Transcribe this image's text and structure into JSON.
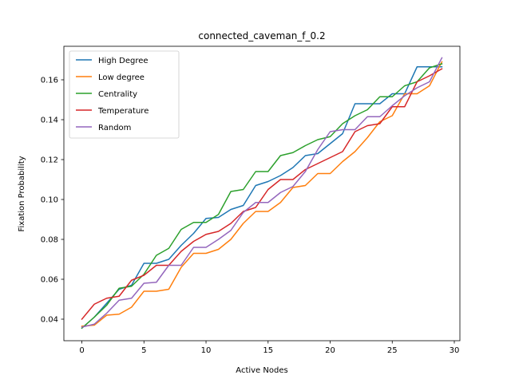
{
  "chart_data": {
    "type": "line",
    "title": "connected_caveman_f_0.2",
    "xlabel": "Active Nodes",
    "ylabel": "Fixation Probability",
    "xlim": [
      -1.45,
      30.45
    ],
    "ylim": [
      0.0292,
      0.1768
    ],
    "xticks": [
      0,
      5,
      10,
      15,
      20,
      25,
      30
    ],
    "yticks": [
      0.04,
      0.06,
      0.08,
      0.1,
      0.12,
      0.14,
      0.16
    ],
    "ytick_labels": [
      "0.04",
      "0.06",
      "0.08",
      "0.10",
      "0.12",
      "0.14",
      "0.16"
    ],
    "grid": false,
    "legend_position": "upper-left",
    "x": [
      0,
      1,
      2,
      3,
      4,
      5,
      6,
      7,
      8,
      9,
      10,
      11,
      12,
      13,
      14,
      15,
      16,
      17,
      18,
      19,
      20,
      21,
      22,
      23,
      24,
      25,
      26,
      27,
      28,
      29
    ],
    "series": [
      {
        "name": "High Degree",
        "color": "#1f77b4",
        "values": [
          0.0355,
          0.041,
          0.048,
          0.055,
          0.057,
          0.068,
          0.068,
          0.07,
          0.077,
          0.083,
          0.0905,
          0.091,
          0.095,
          0.097,
          0.107,
          0.109,
          0.112,
          0.116,
          0.122,
          0.123,
          0.128,
          0.133,
          0.148,
          0.148,
          0.148,
          0.153,
          0.153,
          0.1665,
          0.1665,
          0.1665
        ]
      },
      {
        "name": "Low degree",
        "color": "#ff7f0e",
        "values": [
          0.0365,
          0.037,
          0.042,
          0.0425,
          0.046,
          0.054,
          0.054,
          0.055,
          0.066,
          0.073,
          0.073,
          0.075,
          0.08,
          0.088,
          0.094,
          0.094,
          0.0985,
          0.106,
          0.107,
          0.113,
          0.113,
          0.119,
          0.124,
          0.131,
          0.139,
          0.142,
          0.153,
          0.153,
          0.157,
          0.169
        ]
      },
      {
        "name": "Centrality",
        "color": "#2ca02c",
        "values": [
          0.0355,
          0.041,
          0.047,
          0.0555,
          0.0565,
          0.0625,
          0.072,
          0.0755,
          0.085,
          0.0885,
          0.0885,
          0.0925,
          0.104,
          0.105,
          0.114,
          0.114,
          0.122,
          0.1235,
          0.127,
          0.13,
          0.1315,
          0.138,
          0.142,
          0.145,
          0.1515,
          0.1515,
          0.157,
          0.159,
          0.166,
          0.168
        ]
      },
      {
        "name": "Temperature",
        "color": "#d62728",
        "values": [
          0.04,
          0.0475,
          0.0505,
          0.0515,
          0.0595,
          0.062,
          0.067,
          0.067,
          0.074,
          0.079,
          0.0825,
          0.084,
          0.088,
          0.094,
          0.096,
          0.105,
          0.11,
          0.11,
          0.115,
          0.118,
          0.121,
          0.124,
          0.134,
          0.137,
          0.138,
          0.1465,
          0.1465,
          0.159,
          0.162,
          0.1655
        ]
      },
      {
        "name": "Random",
        "color": "#9467bd",
        "values": [
          0.036,
          0.0375,
          0.043,
          0.0495,
          0.0505,
          0.058,
          0.0585,
          0.067,
          0.067,
          0.076,
          0.076,
          0.08,
          0.0845,
          0.0935,
          0.0985,
          0.0985,
          0.1035,
          0.1065,
          0.114,
          0.125,
          0.134,
          0.135,
          0.135,
          0.1415,
          0.1415,
          0.147,
          0.152,
          0.156,
          0.159,
          0.171
        ]
      }
    ]
  }
}
